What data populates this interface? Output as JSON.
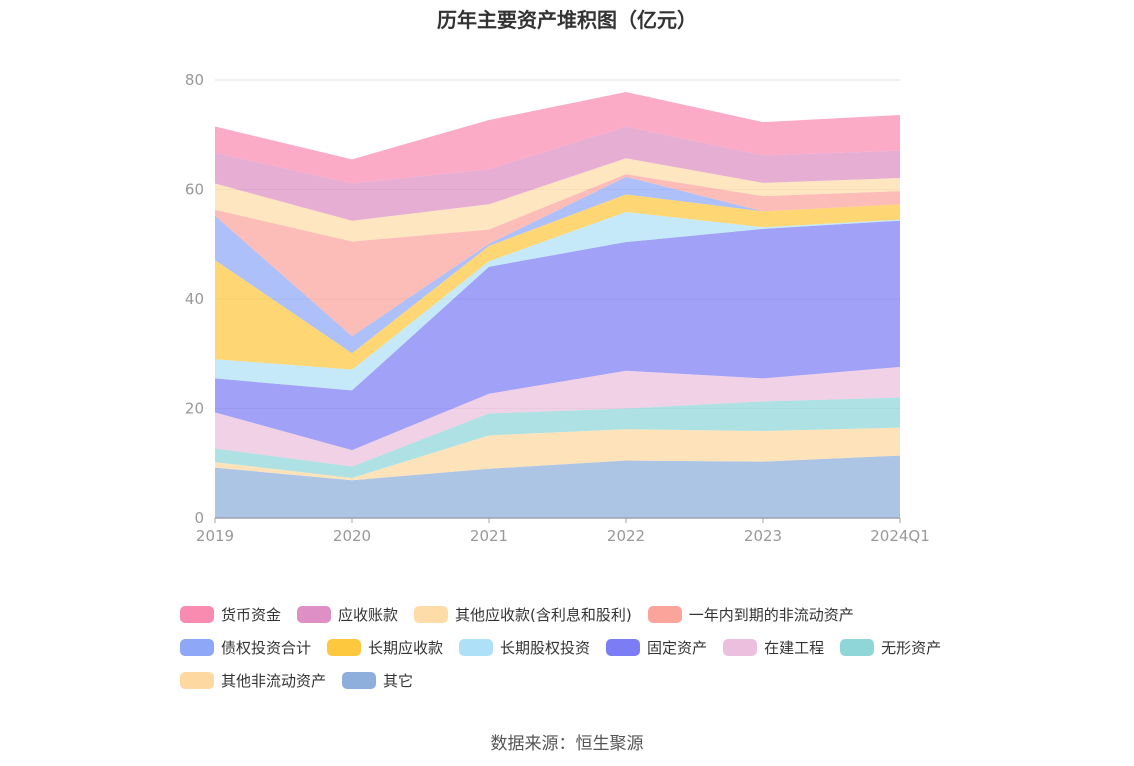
{
  "chart_data": {
    "type": "area",
    "stacked": true,
    "title": "历年主要资产堆积图（亿元）",
    "x": [
      "2019",
      "2020",
      "2021",
      "2022",
      "2023",
      "2024Q1"
    ],
    "ylim": [
      0,
      80
    ],
    "yticks": [
      0,
      20,
      40,
      60,
      80
    ],
    "grid": true,
    "legend_position": "bottom",
    "series": [
      {
        "name": "其它",
        "color": "#8eaedb",
        "values": [
          9.2,
          6.9,
          9.0,
          10.5,
          10.3,
          11.4
        ]
      },
      {
        "name": "其他非流动资产",
        "color": "#fdd8a0",
        "values": [
          1.0,
          0.4,
          6.1,
          5.7,
          5.6,
          5.1
        ]
      },
      {
        "name": "无形资产",
        "color": "#8fd6d8",
        "values": [
          2.5,
          2.1,
          4.0,
          3.8,
          5.4,
          5.5
        ]
      },
      {
        "name": "在建工程",
        "color": "#ebbfdd",
        "values": [
          6.6,
          3.0,
          3.6,
          6.9,
          4.2,
          5.6
        ]
      },
      {
        "name": "固定资产",
        "color": "#7b7df4",
        "values": [
          6.2,
          10.9,
          23.2,
          23.5,
          27.3,
          26.7
        ]
      },
      {
        "name": "长期股权投资",
        "color": "#aee0f7",
        "values": [
          3.5,
          3.8,
          1.0,
          5.5,
          0.3,
          0.2
        ]
      },
      {
        "name": "长期应收款",
        "color": "#fdc73e",
        "values": [
          18.1,
          3.0,
          2.8,
          3.2,
          2.9,
          2.8
        ]
      },
      {
        "name": "债权投资合计",
        "color": "#8ea7f6",
        "values": [
          8.1,
          3.1,
          0.4,
          3.2,
          0.0,
          0.0
        ]
      },
      {
        "name": "一年内到期的非流动资产",
        "color": "#fba49c",
        "values": [
          1.1,
          17.3,
          2.6,
          0.5,
          2.8,
          2.4
        ]
      },
      {
        "name": "其他应收款(含利息和股利)",
        "color": "#fedca8",
        "values": [
          4.8,
          3.8,
          4.6,
          2.9,
          2.4,
          2.4
        ]
      },
      {
        "name": "应收账款",
        "color": "#de8fc4",
        "values": [
          5.6,
          6.8,
          6.4,
          5.8,
          5.0,
          5.0
        ]
      },
      {
        "name": "货币资金",
        "color": "#f98bb0",
        "values": [
          4.8,
          4.4,
          9.0,
          6.3,
          6.1,
          6.5
        ]
      }
    ]
  },
  "legend_order": [
    "货币资金",
    "应收账款",
    "其他应收款(含利息和股利)",
    "一年内到期的非流动资产",
    "债权投资合计",
    "长期应收款",
    "长期股权投资",
    "固定资产",
    "在建工程",
    "无形资产",
    "其他非流动资产",
    "其它"
  ],
  "source": "数据来源：恒生聚源"
}
